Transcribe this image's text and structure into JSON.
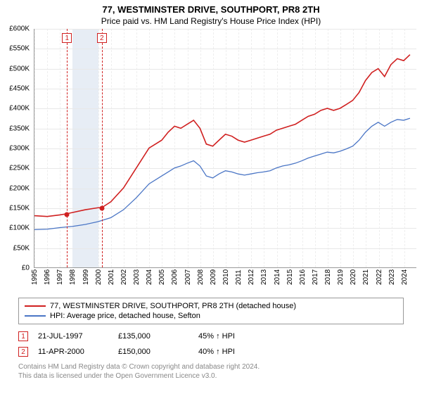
{
  "title": "77, WESTMINSTER DRIVE, SOUTHPORT, PR8 2TH",
  "subtitle": "Price paid vs. HM Land Registry's House Price Index (HPI)",
  "chart": {
    "type": "line",
    "y": {
      "min": 0,
      "max": 600000,
      "step": 50000,
      "labels": [
        "£0",
        "£50K",
        "£100K",
        "£150K",
        "£200K",
        "£250K",
        "£300K",
        "£350K",
        "£400K",
        "£450K",
        "£500K",
        "£550K",
        "£600K"
      ]
    },
    "x": {
      "years": [
        1995,
        1996,
        1997,
        1998,
        1999,
        2000,
        2001,
        2002,
        2003,
        2004,
        2005,
        2006,
        2007,
        2008,
        2009,
        2010,
        2011,
        2012,
        2013,
        2014,
        2015,
        2016,
        2017,
        2018,
        2019,
        2020,
        2021,
        2022,
        2023,
        2024
      ]
    },
    "band": {
      "start_year": 1998,
      "end_year": 2000,
      "color": "#e7edf5"
    },
    "markers": [
      {
        "id": "1",
        "year": 1997.55,
        "price": 135000,
        "color": "#d02020"
      },
      {
        "id": "2",
        "year": 2000.28,
        "price": 150000,
        "color": "#d02020"
      }
    ],
    "series": [
      {
        "name": "77, WESTMINSTER DRIVE, SOUTHPORT, PR8 2TH (detached house)",
        "color": "#d02020",
        "width": 1.6,
        "points": [
          [
            1995,
            130000
          ],
          [
            1996,
            128000
          ],
          [
            1997,
            132000
          ],
          [
            1997.55,
            135000
          ],
          [
            1998,
            138000
          ],
          [
            1999,
            145000
          ],
          [
            2000,
            150000
          ],
          [
            2000.28,
            150000
          ],
          [
            2001,
            165000
          ],
          [
            2002,
            200000
          ],
          [
            2003,
            250000
          ],
          [
            2004,
            300000
          ],
          [
            2005,
            320000
          ],
          [
            2005.5,
            340000
          ],
          [
            2006,
            355000
          ],
          [
            2006.5,
            350000
          ],
          [
            2007,
            360000
          ],
          [
            2007.5,
            370000
          ],
          [
            2008,
            350000
          ],
          [
            2008.5,
            310000
          ],
          [
            2009,
            305000
          ],
          [
            2009.5,
            320000
          ],
          [
            2010,
            335000
          ],
          [
            2010.5,
            330000
          ],
          [
            2011,
            320000
          ],
          [
            2011.5,
            315000
          ],
          [
            2012,
            320000
          ],
          [
            2012.5,
            325000
          ],
          [
            2013,
            330000
          ],
          [
            2013.5,
            335000
          ],
          [
            2014,
            345000
          ],
          [
            2014.5,
            350000
          ],
          [
            2015,
            355000
          ],
          [
            2015.5,
            360000
          ],
          [
            2016,
            370000
          ],
          [
            2016.5,
            380000
          ],
          [
            2017,
            385000
          ],
          [
            2017.5,
            395000
          ],
          [
            2018,
            400000
          ],
          [
            2018.5,
            395000
          ],
          [
            2019,
            400000
          ],
          [
            2019.5,
            410000
          ],
          [
            2020,
            420000
          ],
          [
            2020.5,
            440000
          ],
          [
            2021,
            470000
          ],
          [
            2021.5,
            490000
          ],
          [
            2022,
            500000
          ],
          [
            2022.5,
            480000
          ],
          [
            2023,
            510000
          ],
          [
            2023.5,
            525000
          ],
          [
            2024,
            520000
          ],
          [
            2024.5,
            535000
          ]
        ]
      },
      {
        "name": "HPI: Average price, detached house, Sefton",
        "color": "#4a75c5",
        "width": 1.3,
        "points": [
          [
            1995,
            95000
          ],
          [
            1996,
            96000
          ],
          [
            1997,
            100000
          ],
          [
            1998,
            103000
          ],
          [
            1999,
            108000
          ],
          [
            2000,
            115000
          ],
          [
            2001,
            125000
          ],
          [
            2002,
            145000
          ],
          [
            2003,
            175000
          ],
          [
            2004,
            210000
          ],
          [
            2005,
            230000
          ],
          [
            2005.5,
            240000
          ],
          [
            2006,
            250000
          ],
          [
            2006.5,
            255000
          ],
          [
            2007,
            262000
          ],
          [
            2007.5,
            268000
          ],
          [
            2008,
            255000
          ],
          [
            2008.5,
            230000
          ],
          [
            2009,
            225000
          ],
          [
            2009.5,
            235000
          ],
          [
            2010,
            243000
          ],
          [
            2010.5,
            240000
          ],
          [
            2011,
            235000
          ],
          [
            2011.5,
            232000
          ],
          [
            2012,
            235000
          ],
          [
            2012.5,
            238000
          ],
          [
            2013,
            240000
          ],
          [
            2013.5,
            243000
          ],
          [
            2014,
            250000
          ],
          [
            2014.5,
            255000
          ],
          [
            2015,
            258000
          ],
          [
            2015.5,
            262000
          ],
          [
            2016,
            268000
          ],
          [
            2016.5,
            275000
          ],
          [
            2017,
            280000
          ],
          [
            2017.5,
            285000
          ],
          [
            2018,
            290000
          ],
          [
            2018.5,
            288000
          ],
          [
            2019,
            292000
          ],
          [
            2019.5,
            298000
          ],
          [
            2020,
            305000
          ],
          [
            2020.5,
            320000
          ],
          [
            2021,
            340000
          ],
          [
            2021.5,
            355000
          ],
          [
            2022,
            365000
          ],
          [
            2022.5,
            355000
          ],
          [
            2023,
            365000
          ],
          [
            2023.5,
            372000
          ],
          [
            2024,
            370000
          ],
          [
            2024.5,
            375000
          ]
        ]
      }
    ]
  },
  "legend": [
    {
      "color": "#d02020",
      "label": "77, WESTMINSTER DRIVE, SOUTHPORT, PR8 2TH (detached house)"
    },
    {
      "color": "#4a75c5",
      "label": "HPI: Average price, detached house, Sefton"
    }
  ],
  "transactions": [
    {
      "id": "1",
      "date": "21-JUL-1997",
      "price": "£135,000",
      "rel": "45% ↑ HPI",
      "color": "#d02020"
    },
    {
      "id": "2",
      "date": "11-APR-2000",
      "price": "£150,000",
      "rel": "40% ↑ HPI",
      "color": "#d02020"
    }
  ],
  "footer": {
    "line1": "Contains HM Land Registry data © Crown copyright and database right 2024.",
    "line2": "This data is licensed under the Open Government Licence v3.0."
  }
}
